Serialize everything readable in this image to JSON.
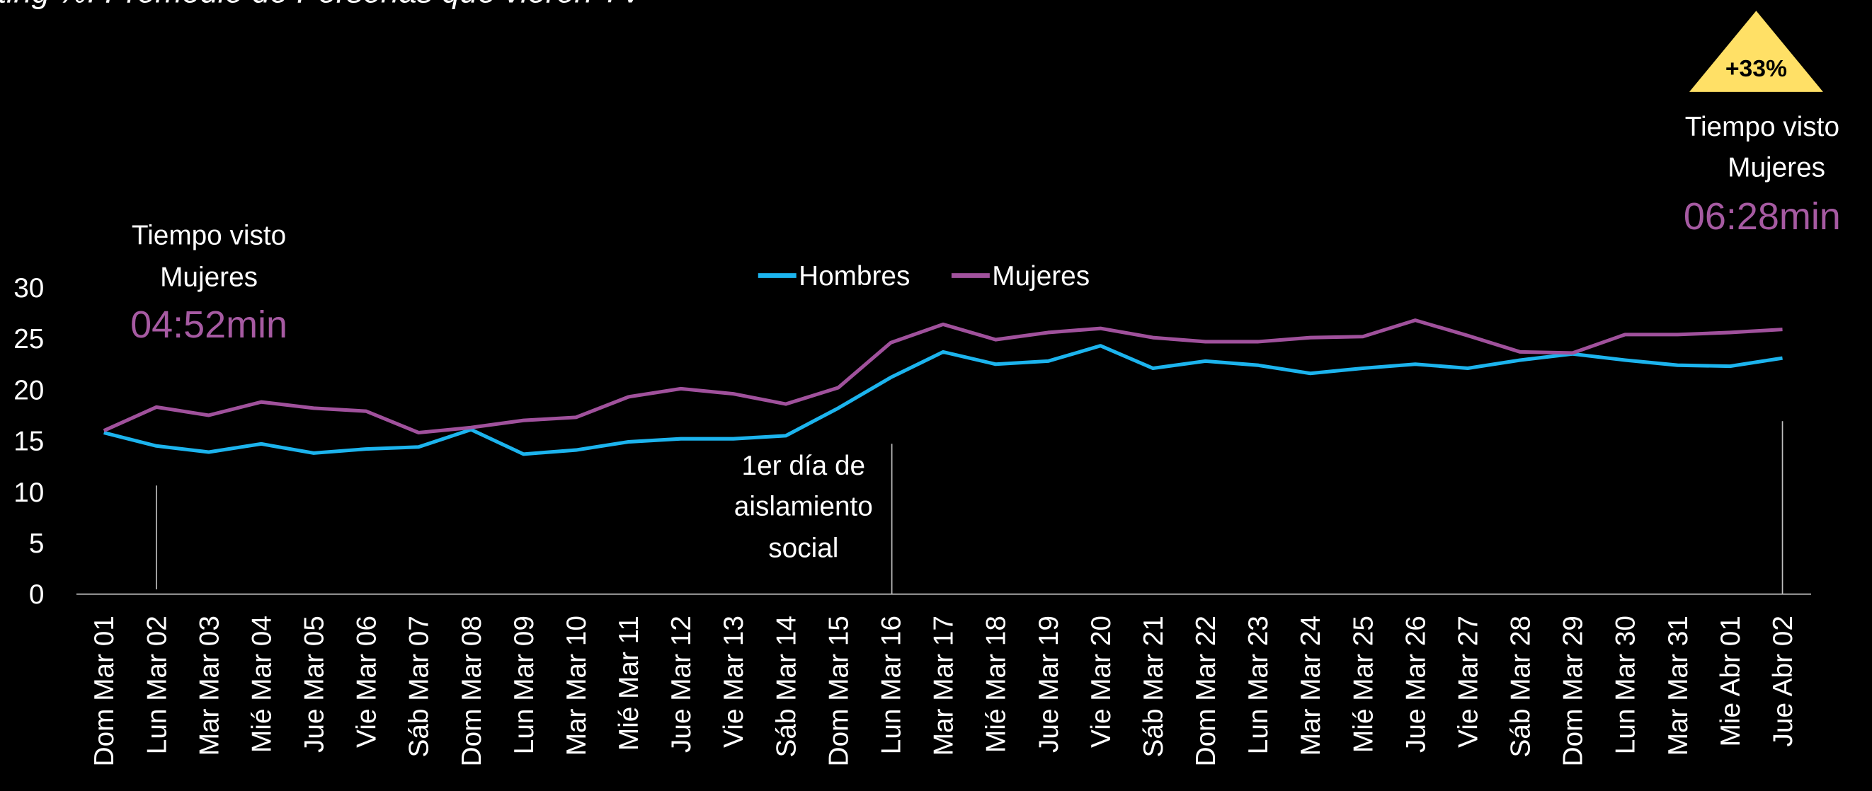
{
  "chart_data": {
    "type": "line",
    "title": "ting %: Promedio de Personas que vieron TV",
    "categories": [
      "Dom Mar 01",
      "Lun Mar 02",
      "Mar Mar 03",
      "Mié Mar 04",
      "Jue Mar 05",
      "Vie Mar 06",
      "Sáb Mar 07",
      "Dom Mar 08",
      "Lun Mar 09",
      "Mar Mar 10",
      "Mié Mar 11",
      "Jue Mar 12",
      "Vie Mar 13",
      "Sáb Mar 14",
      "Dom Mar 15",
      "Lun Mar 16",
      "Mar Mar 17",
      "Mié Mar 18",
      "Jue Mar 19",
      "Vie Mar 20",
      "Sáb Mar 21",
      "Dom Mar 22",
      "Lun Mar 23",
      "Mar Mar 24",
      "Mié Mar 25",
      "Jue Mar 26",
      "Vie Mar 27",
      "Sáb Mar 28",
      "Dom Mar 29",
      "Lun Mar 30",
      "Mar Mar 31",
      "Mie Abr 01",
      "Jue Abr 02"
    ],
    "series": [
      {
        "name": "Hombres",
        "color": "#1cb4ee",
        "values": [
          15.8,
          14.5,
          13.9,
          14.7,
          13.8,
          14.2,
          14.4,
          16.1,
          13.7,
          14.1,
          14.9,
          15.2,
          15.2,
          15.5,
          18.2,
          21.2,
          23.7,
          22.5,
          22.8,
          24.3,
          22.1,
          22.8,
          22.4,
          21.6,
          22.1,
          22.5,
          22.1,
          22.9,
          23.5,
          22.9,
          22.4,
          22.3,
          23.1
        ]
      },
      {
        "name": "Mujeres",
        "color": "#a0519c",
        "values": [
          16.0,
          18.3,
          17.5,
          18.8,
          18.2,
          17.9,
          15.8,
          16.3,
          17.0,
          17.3,
          19.3,
          20.1,
          19.6,
          18.6,
          20.2,
          24.6,
          26.4,
          24.9,
          25.6,
          26.0,
          25.1,
          24.7,
          24.7,
          25.1,
          25.2,
          26.8,
          25.3,
          23.7,
          23.6,
          25.4,
          25.4,
          25.6,
          25.9
        ]
      }
    ],
    "ylim": [
      0,
      30
    ],
    "yticks": [
      0,
      5,
      10,
      15,
      20,
      25,
      30
    ],
    "grid": false,
    "legend": "top",
    "annotations": {
      "left": {
        "lines": [
          "Tiempo visto",
          "Mujeres"
        ],
        "value": "04:52min"
      },
      "right": {
        "badge": "+33%",
        "lines": [
          "Tiempo visto",
          "Mujeres"
        ],
        "value": "06:28min"
      },
      "event": {
        "lines": [
          "1er día de",
          "aislamiento",
          "social"
        ]
      }
    }
  }
}
